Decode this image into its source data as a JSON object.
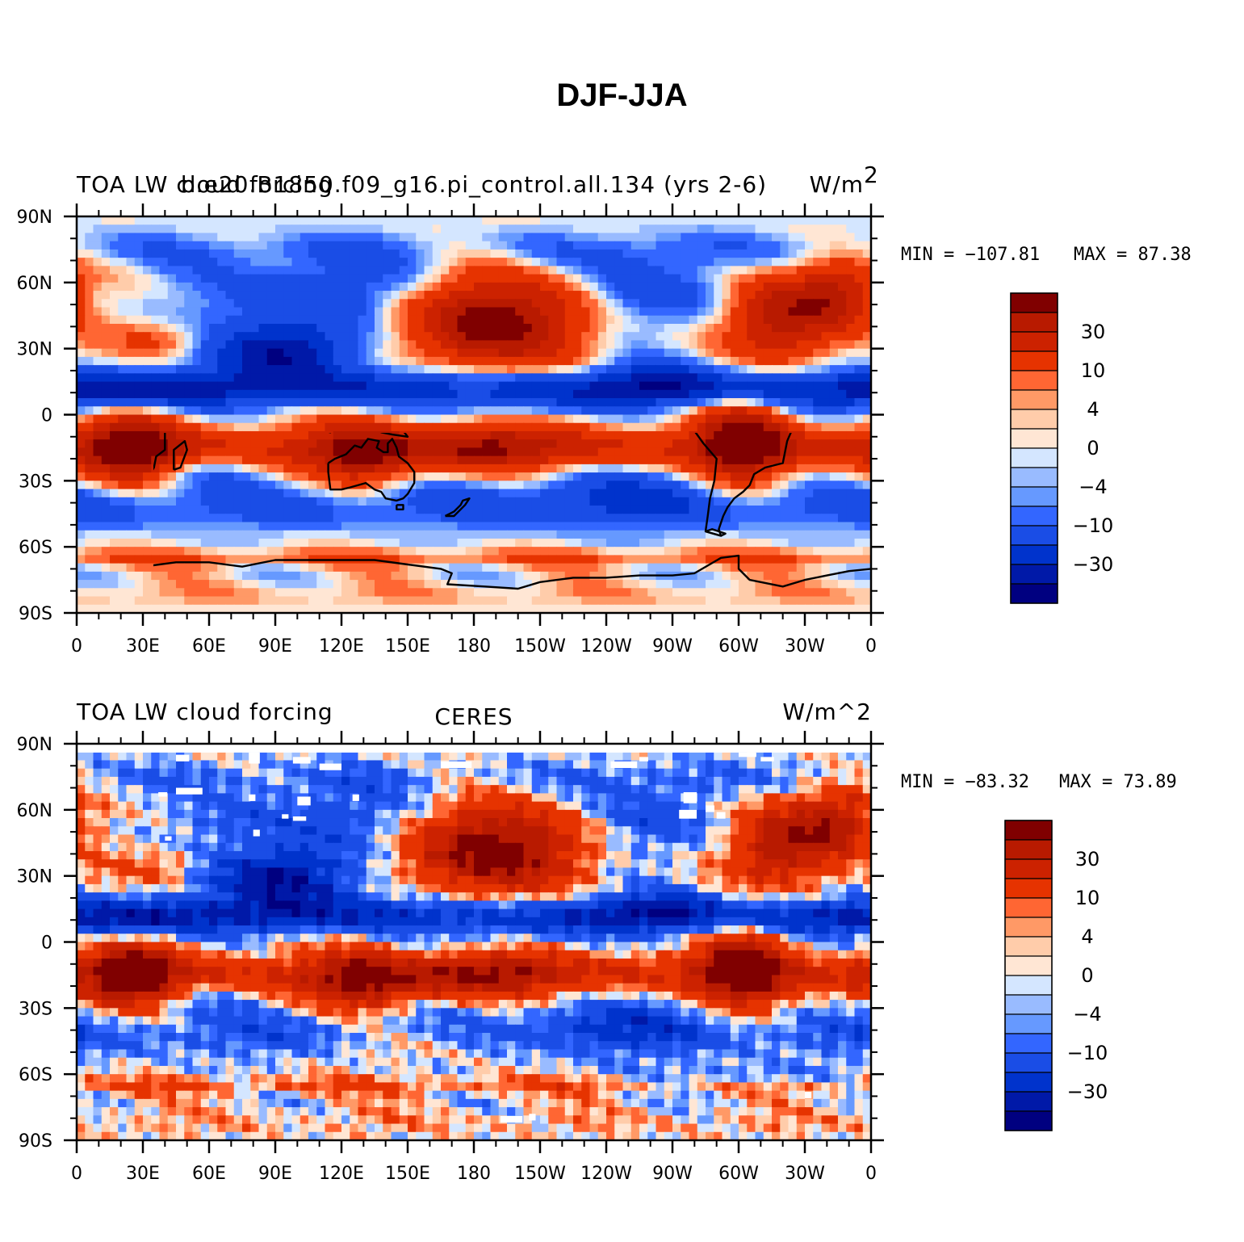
{
  "figure": {
    "title": "DJF-JJA"
  },
  "colors": {
    "levels": [
      "#000080",
      "#0019a8",
      "#0033cc",
      "#1a4de6",
      "#3366ff",
      "#6699ff",
      "#99bbff",
      "#d4e6ff",
      "#ffe6d4",
      "#ffccaa",
      "#ff9966",
      "#ff6633",
      "#e63300",
      "#cc2200",
      "#b81a00",
      "#800000"
    ],
    "coastline": "#000000",
    "missing": "#ffffff"
  },
  "panels": [
    {
      "id": "model",
      "left_title": "TOA LW cloud forcing",
      "center_title": "b.e20.B1850.f09_g16.pi_control.all.134 (yrs 2-6)",
      "right_title": "W/m",
      "right_title_sup": "2",
      "min_label": "MIN = −107.81",
      "max_label": "MAX =   87.38",
      "missing_data": false
    },
    {
      "id": "obs",
      "left_title": "TOA LW cloud forcing",
      "center_title": "CERES",
      "right_title": "W/m^2",
      "right_title_sup": "",
      "min_label": "MIN = −83.32",
      "max_label": "MAX =   73.89",
      "missing_data": true
    }
  ],
  "axes": {
    "y_ticks": [
      "90N",
      "60N",
      "30N",
      "0",
      "30S",
      "60S",
      "90S"
    ],
    "x_ticks": [
      "0",
      "30E",
      "60E",
      "90E",
      "120E",
      "150E",
      "180",
      "150W",
      "120W",
      "90W",
      "60W",
      "30W",
      "0"
    ]
  },
  "colorbar": {
    "labels": [
      "30",
      "10",
      "4",
      "0",
      "−4",
      "−10",
      "−30"
    ]
  }
}
